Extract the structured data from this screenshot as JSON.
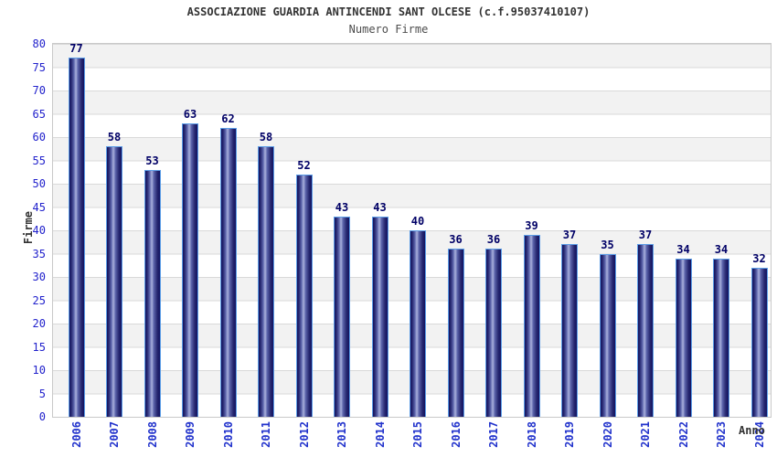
{
  "header": {
    "title": "ASSOCIAZIONE GUARDIA ANTINCENDI SANT OLCESE (c.f.95037410107)",
    "subtitle": "Numero Firme"
  },
  "chart_data": {
    "type": "bar",
    "title": "ASSOCIAZIONE GUARDIA ANTINCENDI SANT OLCESE (c.f.95037410107)",
    "subtitle": "Numero Firme",
    "xlabel": "Anno",
    "ylabel": "Firme",
    "categories": [
      "2006",
      "2007",
      "2008",
      "2009",
      "2010",
      "2011",
      "2012",
      "2013",
      "2014",
      "2015",
      "2016",
      "2017",
      "2018",
      "2019",
      "2020",
      "2021",
      "2022",
      "2023",
      "2024"
    ],
    "values": [
      77,
      58,
      53,
      63,
      62,
      58,
      52,
      43,
      43,
      40,
      36,
      36,
      39,
      37,
      35,
      37,
      34,
      34,
      32
    ],
    "ylim": [
      0,
      80
    ],
    "ytick_step": 5,
    "grid": "horizontal gridlines with alternating gray/white bands",
    "legend": "none",
    "value_labels": "above each bar",
    "colors": {
      "bar_dark": "#131360",
      "bar_highlight": "#aab1dd",
      "bar_border": "#5b9ce6",
      "tick_label_blue": "#2222cc",
      "value_label_navy": "#000066",
      "band_gray": "#f2f2f2",
      "grid_line": "#d9d9d9",
      "plot_border": "#c9c9c9",
      "title_gray": "#333333",
      "subtitle_gray": "#4d4d4d",
      "background": "#ffffff"
    }
  }
}
